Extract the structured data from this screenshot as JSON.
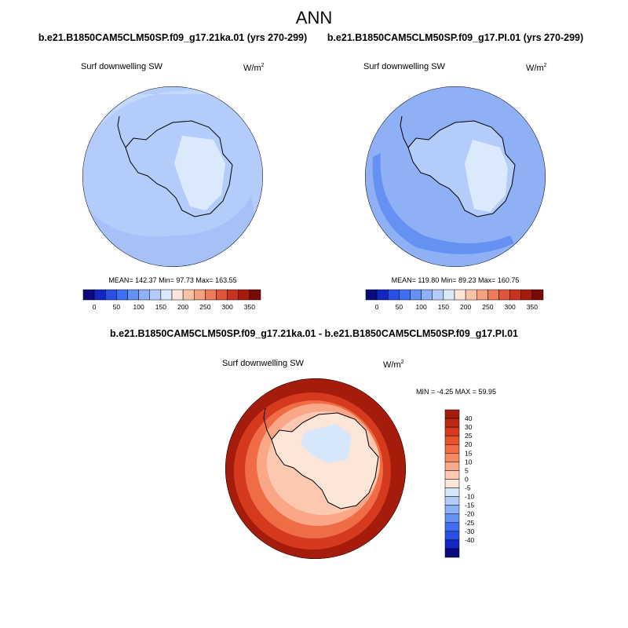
{
  "title": "ANN",
  "panels": [
    {
      "case": "b.e21.B1850CAM5CLM50SP.f09_g17.21ka.01 (yrs 270-299)",
      "variable": "Surf downwelling SW",
      "units": "W/m",
      "units_exponent": "2",
      "stats": "MEAN= 142.37  Min=  97.73  Max= 163.55",
      "colorbar_labels": [
        "0",
        "50",
        "100",
        "150",
        "200",
        "250",
        "300",
        "350"
      ],
      "colorbar_colors": [
        "#0b0b7e",
        "#1426c2",
        "#2b4fe6",
        "#3f6ff0",
        "#6592f2",
        "#8fb0f5",
        "#b4ccfa",
        "#dbe9fd",
        "#fde5d8",
        "#f9c3a8",
        "#f5a07e",
        "#ee7a57",
        "#df553a",
        "#c8321f",
        "#a51b0c",
        "#7a0a05"
      ]
    },
    {
      "case": "b.e21.B1850CAM5CLM50SP.f09_g17.PI.01 (yrs 270-299)",
      "variable": "Surf downwelling SW",
      "units": "W/m",
      "units_exponent": "2",
      "stats": "MEAN= 119.80  Min=  89.23  Max= 160.75",
      "colorbar_labels": [
        "0",
        "50",
        "100",
        "150",
        "200",
        "250",
        "300",
        "350"
      ],
      "colorbar_colors": [
        "#0b0b7e",
        "#1426c2",
        "#2b4fe6",
        "#3f6ff0",
        "#6592f2",
        "#8fb0f5",
        "#b4ccfa",
        "#dbe9fd",
        "#fde5d8",
        "#f9c3a8",
        "#f5a07e",
        "#ee7a57",
        "#df553a",
        "#c8321f",
        "#a51b0c",
        "#7a0a05"
      ]
    }
  ],
  "difference": {
    "case": "b.e21.B1850CAM5CLM50SP.f09_g17.21ka.01 - b.e21.B1850CAM5CLM50SP.f09_g17.PI.01",
    "variable": "Surf downwelling SW",
    "units": "W/m",
    "units_exponent": "2",
    "stats": "MIN =  -4.25 MAX =  59.95",
    "colorbar_labels": [
      "40",
      "30",
      "25",
      "20",
      "15",
      "10",
      "5",
      "0",
      "-5",
      "-10",
      "-15",
      "-20",
      "-25",
      "-30",
      "-40"
    ],
    "colorbar_colors": [
      "#a51b0c",
      "#bd2812",
      "#d63a1e",
      "#e8532f",
      "#f06c44",
      "#f58a62",
      "#f9a787",
      "#fcc8b0",
      "#fde5d8",
      "#d6e6fb",
      "#b4ccfa",
      "#8fb0f5",
      "#6592f2",
      "#3f6ff0",
      "#2b4fe6",
      "#1426c2",
      "#0b0b7e"
    ]
  }
}
